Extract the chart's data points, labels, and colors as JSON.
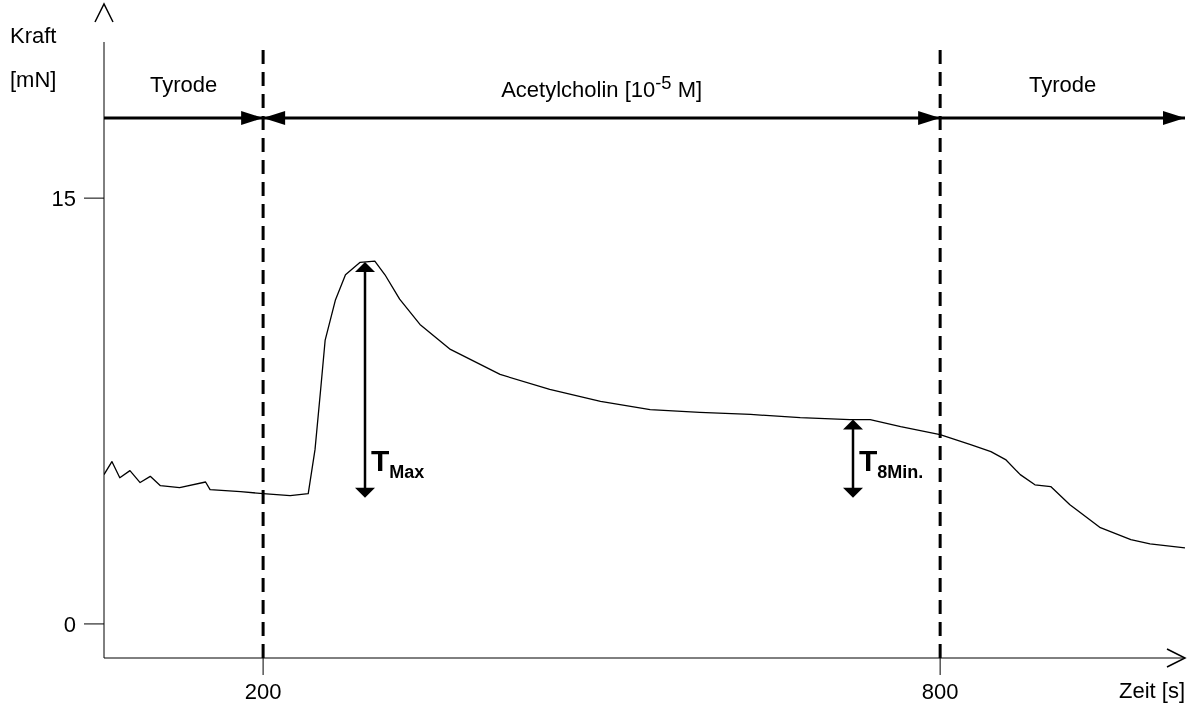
{
  "chart_data": {
    "type": "line",
    "xlabel": "Zeit [s]",
    "ylabel": "Kraft [mN]",
    "xlim": [
      59,
      1017
    ],
    "ylim": [
      -1.2,
      20.5
    ],
    "xticks": [
      200,
      800
    ],
    "yticks": [
      0,
      15
    ],
    "x": [
      59,
      66,
      73,
      82,
      91,
      100,
      109,
      126,
      149,
      153,
      180,
      200,
      224,
      240,
      246,
      251,
      255,
      264,
      273,
      286,
      299,
      308,
      321,
      339,
      366,
      410,
      454,
      499,
      543,
      587,
      632,
      676,
      720,
      738,
      765,
      800,
      827,
      845,
      858,
      871,
      884,
      898,
      915,
      942,
      969,
      986,
      1017
    ],
    "series": [
      {
        "color": "#000000",
        "values": [
          5.26,
          5.72,
          5.15,
          5.4,
          4.98,
          5.2,
          4.87,
          4.8,
          5.0,
          4.73,
          4.66,
          4.59,
          4.52,
          4.59,
          6.14,
          8.26,
          10.0,
          11.4,
          12.3,
          12.74,
          12.78,
          12.3,
          11.44,
          10.55,
          9.67,
          8.79,
          8.26,
          7.84,
          7.55,
          7.45,
          7.38,
          7.27,
          7.2,
          7.2,
          6.95,
          6.67,
          6.32,
          6.07,
          5.79,
          5.26,
          4.9,
          4.84,
          4.2,
          3.39,
          2.97,
          2.82,
          2.68
        ]
      }
    ],
    "ref_lines": [
      {
        "axis": "x",
        "value": 200,
        "line_style": "dashed",
        "color": "#000000"
      },
      {
        "axis": "x",
        "value": 800,
        "line_style": "dashed",
        "color": "#000000"
      }
    ],
    "annotations": [
      "Tyrode",
      "Acetylcholin [10$^{-5}$ M]",
      "Tyrode",
      "T$_{Max}$",
      "T$_{8Min.}$"
    ],
    "marker": "none",
    "line_style": "solid"
  }
}
